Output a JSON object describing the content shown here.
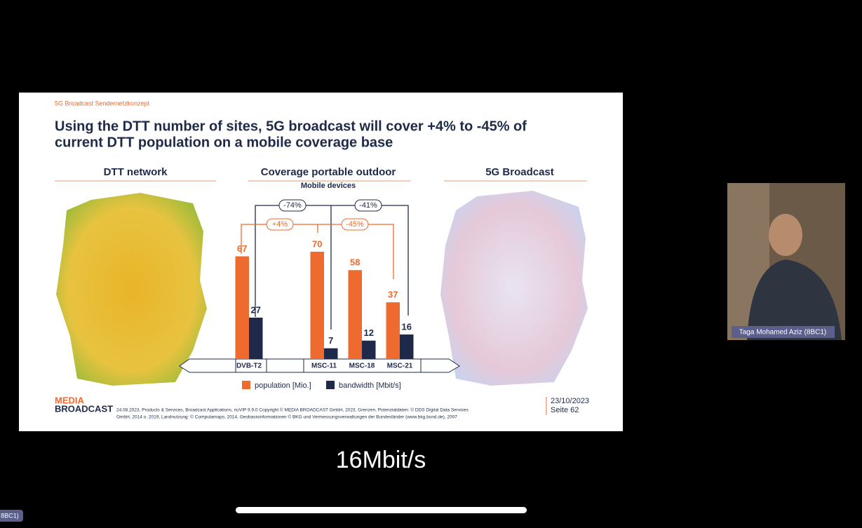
{
  "slide": {
    "kicker": "5G Broadcast Sendernetzkonzept",
    "title_line1": "Using the DTT number of sites, 5G broadcast will cover +4% to -45% of",
    "title_line2": "current DTT population on a mobile coverage base",
    "left_header": "DTT network",
    "center_header": "Coverage portable outdoor",
    "center_subheader": "Mobile devices",
    "right_header": "5G Broadcast",
    "logo_line1": "MEDIA",
    "logo_line2": "BROADCAST",
    "footer_line1": "24.08.2023,   Products & Services, Broadcast Applications,   nuVIP 9.9.0 Copyright © MEDIA BROADCAST GmbH, 2023, Grenzen, Potenzialdaten: © DDS Digital Data Services",
    "footer_line2": "GmbH, 2014 o. 2019, Landnutzung: © Computamaps, 2014, Geobasisinformationen © BKG und Vermessungsverwaltungen der Bundesländer (www.bkg.bund.de), 2007",
    "date": "23/10/2023",
    "page": "Seite 62"
  },
  "chart_data": {
    "type": "bar",
    "categories": [
      "DVB-T2",
      "MSC-11",
      "MSC-18",
      "MSC-21"
    ],
    "series": [
      {
        "name": "population [Mio.]",
        "color": "#ef6a2e",
        "values": [
          67,
          70,
          58,
          37
        ]
      },
      {
        "name": "bandwidth [Mbit/s]",
        "color": "#1f2a4a",
        "values": [
          27,
          7,
          12,
          16
        ]
      }
    ],
    "annotations": [
      "-74%",
      "-41%",
      "+4%",
      "-45%"
    ]
  },
  "participant": {
    "name": "Taga Mohamed Aziz (8BC1)"
  },
  "caption": "16Mbit/s",
  "badge": "8BC1)"
}
